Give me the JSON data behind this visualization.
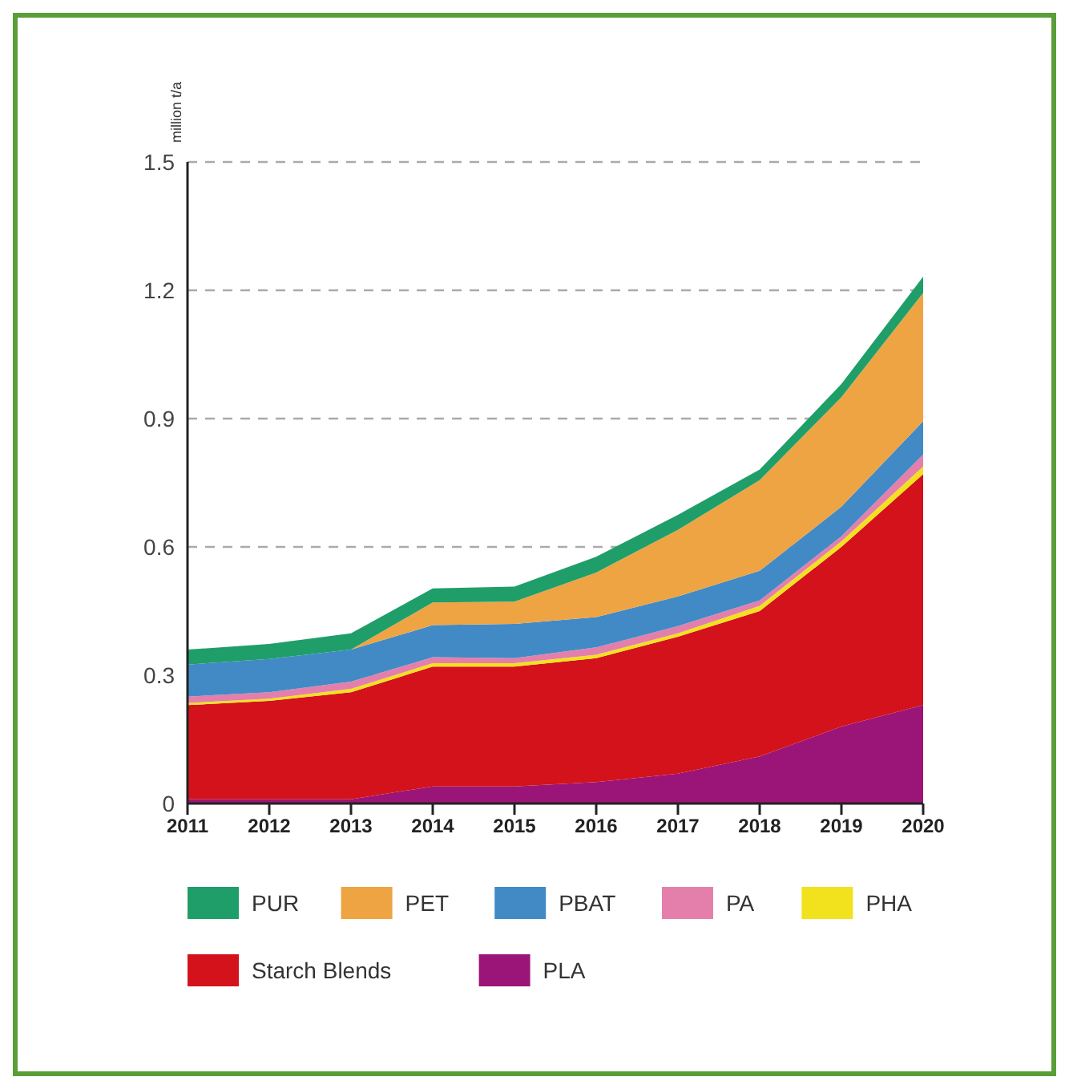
{
  "chart_data": {
    "type": "area",
    "stacked": true,
    "ylabel": "million t/a",
    "x": [
      2011,
      2012,
      2013,
      2014,
      2015,
      2016,
      2017,
      2018,
      2019,
      2020
    ],
    "xlim": [
      2011,
      2020
    ],
    "xticks": [
      2011,
      2012,
      2013,
      2014,
      2015,
      2016,
      2017,
      2018,
      2019,
      2020
    ],
    "ylim": [
      0,
      1.5
    ],
    "yticks": [
      0,
      0.3,
      0.6,
      0.9,
      1.2,
      1.5
    ],
    "grid": "y",
    "legend": "bottom",
    "series": [
      {
        "name": "PLA",
        "color": "#9b1578",
        "values": [
          0.01,
          0.01,
          0.01,
          0.04,
          0.04,
          0.05,
          0.07,
          0.11,
          0.18,
          0.23
        ]
      },
      {
        "name": "Starch Blends",
        "color": "#d4121b",
        "values": [
          0.22,
          0.23,
          0.25,
          0.28,
          0.28,
          0.29,
          0.32,
          0.34,
          0.42,
          0.54
        ]
      },
      {
        "name": "PHA",
        "color": "#f2e21e",
        "values": [
          0.005,
          0.005,
          0.008,
          0.008,
          0.008,
          0.008,
          0.008,
          0.012,
          0.013,
          0.018
        ]
      },
      {
        "name": "PA",
        "color": "#e47fab",
        "values": [
          0.015,
          0.015,
          0.017,
          0.014,
          0.012,
          0.017,
          0.017,
          0.013,
          0.012,
          0.028
        ]
      },
      {
        "name": "PBAT",
        "color": "#428ac6",
        "values": [
          0.075,
          0.078,
          0.075,
          0.075,
          0.08,
          0.071,
          0.069,
          0.069,
          0.069,
          0.078
        ]
      },
      {
        "name": "PET",
        "color": "#eea443",
        "values": [
          0,
          0,
          0,
          0.053,
          0.052,
          0.104,
          0.156,
          0.212,
          0.256,
          0.3
        ]
      },
      {
        "name": "PUR",
        "color": "#1f9e6a",
        "values": [
          0.035,
          0.035,
          0.038,
          0.033,
          0.035,
          0.037,
          0.035,
          0.025,
          0.031,
          0.038
        ]
      }
    ]
  }
}
